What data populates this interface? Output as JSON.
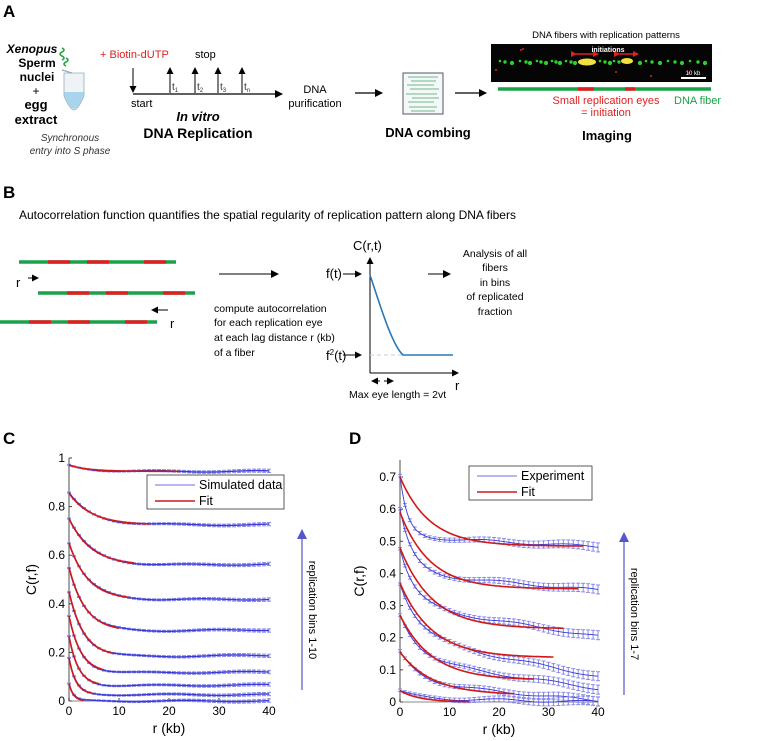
{
  "panel_a": {
    "label": "A",
    "xenopus": "Xenopus",
    "sperm": "Sperm",
    "nuclei": "nuclei",
    "plus": "+",
    "egg": "egg",
    "extract": "extract",
    "sync1": "Synchronous",
    "sync2": "entry into S phase",
    "biotin": "+ Biotin-dUTP",
    "stop": "stop",
    "start": "start",
    "t_base": "t",
    "t_subs": [
      "1",
      "2",
      "3",
      "n"
    ],
    "in_vitro": "In vitro",
    "dna_replication": "DNA Replication",
    "purification1": "DNA",
    "purification2": "purification",
    "combing": "DNA combing",
    "fibers_title": "DNA fibers with replication patterns",
    "initiations": "initiations",
    "scale_bar": "10 kb",
    "eyes1": "Small replication eyes",
    "eyes2": "= initiation",
    "dna_fiber": "DNA fiber",
    "imaging": "Imaging",
    "colors": {
      "green": "#1aa14a",
      "red": "#e02020"
    }
  },
  "panel_b": {
    "label": "B",
    "title": "Autocorrelation function quantifies the spatial regularity of replication pattern along DNA fibers",
    "r": "r",
    "compute": [
      "compute autocorrelation",
      "for each replication eye",
      "at each lag distance r (kb)",
      "of a fiber"
    ],
    "c_rt": "C(r,t)",
    "f_t": "f(t)",
    "f2_base": "f",
    "f2_sup": "2",
    "f2_rest": "(t)",
    "max_eye": "Max eye length = 2vt",
    "r_axis": "r",
    "analysis": [
      "Analysis of all",
      "fibers",
      "in bins",
      "of replicated",
      "fraction"
    ]
  },
  "chart_data": [
    {
      "panel": "C",
      "type": "line",
      "xlabel": "r (kb)",
      "ylabel": "C(r,f)",
      "xlim": [
        0,
        40
      ],
      "ylim": [
        0,
        1
      ],
      "xticks": [
        "0",
        "10",
        "20",
        "30",
        "40"
      ],
      "yticks": [
        "0",
        "0.2",
        "0.4",
        "0.6",
        "0.8",
        "1"
      ],
      "legend": {
        "placement": "top-right",
        "entries": [
          "Simulated data",
          "Fit"
        ]
      },
      "annotation": "replication bins 1-10",
      "model": "y = plateau + (start - plateau)*exp(-r/decay) + slope*r",
      "series": [
        {
          "name": "bin 10",
          "start": 0.97,
          "plateau": 0.945,
          "decay": 4,
          "slope": 0,
          "fit_end": 22
        },
        {
          "name": "bin 9",
          "start": 0.855,
          "plateau": 0.725,
          "decay": 4.5,
          "slope": 0,
          "fit_end": 16
        },
        {
          "name": "bin 8",
          "start": 0.75,
          "plateau": 0.555,
          "decay": 4.5,
          "slope": 0.0002,
          "fit_end": 13
        },
        {
          "name": "bin 7",
          "start": 0.65,
          "plateau": 0.415,
          "decay": 3.8,
          "slope": 0.0001,
          "fit_end": 12
        },
        {
          "name": "bin 6",
          "start": 0.55,
          "plateau": 0.285,
          "decay": 3.3,
          "slope": 0.0002,
          "fit_end": 10
        },
        {
          "name": "bin 5",
          "start": 0.45,
          "plateau": 0.18,
          "decay": 3,
          "slope": 0.0002,
          "fit_end": 9
        },
        {
          "name": "bin 4",
          "start": 0.35,
          "plateau": 0.115,
          "decay": 2.4,
          "slope": 0.0001,
          "fit_end": 7
        },
        {
          "name": "bin 3",
          "start": 0.265,
          "plateau": 0.062,
          "decay": 1.9,
          "slope": 0.0001,
          "fit_end": 6
        },
        {
          "name": "bin 2",
          "start": 0.175,
          "plateau": 0.026,
          "decay": 1.4,
          "slope": 0,
          "fit_end": 5
        },
        {
          "name": "bin 1",
          "start": 0.07,
          "plateau": 0.0,
          "decay": 0.9,
          "slope": 0,
          "fit_end": 3
        }
      ]
    },
    {
      "panel": "D",
      "type": "line",
      "xlabel": "r (kb)",
      "ylabel": "C(r,f)",
      "xlim": [
        0,
        40
      ],
      "ylim": [
        0,
        0.7
      ],
      "xticks": [
        "0",
        "10",
        "20",
        "30",
        "40"
      ],
      "yticks": [
        "0",
        "0.1",
        "0.2",
        "0.3",
        "0.4",
        "0.5",
        "0.6",
        "0.7"
      ],
      "legend": {
        "placement": "top-right",
        "entries": [
          "Experiment",
          "Fit"
        ]
      },
      "annotation": "replication bins 1-7",
      "model": "y = plateau + (start - plateau)*exp(-r/decay) + slope*r",
      "series": [
        {
          "name": "bin 7",
          "exp": {
            "start": 0.7,
            "plateau": 0.515,
            "decay": 1.5,
            "slope": -0.0008
          },
          "fit": {
            "start": 0.7,
            "plateau": 0.485,
            "decay": 6,
            "end": 37
          }
        },
        {
          "name": "bin 6",
          "exp": {
            "start": 0.6,
            "plateau": 0.4,
            "decay": 2.5,
            "slope": -0.0013
          },
          "fit": {
            "start": 0.59,
            "plateau": 0.352,
            "decay": 6,
            "end": 36
          }
        },
        {
          "name": "bin 5",
          "exp": {
            "start": 0.48,
            "plateau": 0.3,
            "decay": 3,
            "slope": -0.0024
          },
          "fit": {
            "start": 0.48,
            "plateau": 0.228,
            "decay": 6.5,
            "end": 33
          }
        },
        {
          "name": "bin 4",
          "exp": {
            "start": 0.37,
            "plateau": 0.2,
            "decay": 4,
            "slope": -0.003
          },
          "fit": {
            "start": 0.37,
            "plateau": 0.138,
            "decay": 6.5,
            "end": 31
          }
        },
        {
          "name": "bin 3",
          "exp": {
            "start": 0.27,
            "plateau": 0.13,
            "decay": 4,
            "slope": -0.0022
          },
          "fit": {
            "start": 0.27,
            "plateau": 0.068,
            "decay": 6.5,
            "end": 27
          }
        },
        {
          "name": "bin 2",
          "exp": {
            "start": 0.155,
            "plateau": 0.06,
            "decay": 4,
            "slope": -0.0014
          },
          "fit": {
            "start": 0.155,
            "plateau": 0.022,
            "decay": 6.5,
            "end": 23
          }
        },
        {
          "name": "bin 1",
          "exp": {
            "start": 0.035,
            "plateau": 0.012,
            "decay": 3,
            "slope": -0.0003
          },
          "fit": {
            "start": 0.035,
            "plateau": 0.0,
            "decay": 4,
            "end": 14
          }
        }
      ]
    }
  ],
  "colors": {
    "data_blue": "#3a3ad8",
    "err_blue": "#8a8ae8",
    "fit_red": "#d01818",
    "arrow_blue": "#5555cc",
    "curve_blue": "#2a78b8"
  }
}
